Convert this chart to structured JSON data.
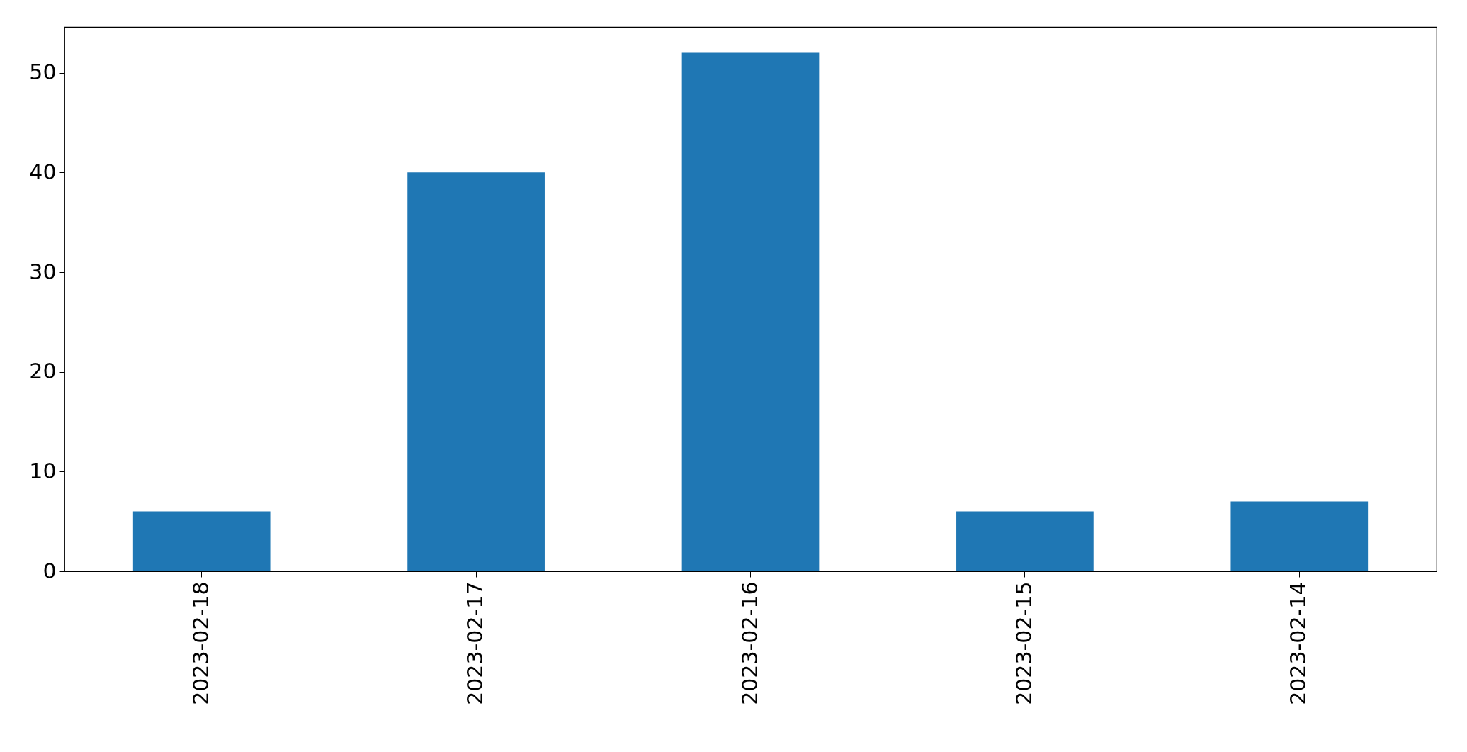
{
  "chart_data": {
    "type": "bar",
    "categories": [
      "2023-02-18",
      "2023-02-17",
      "2023-02-16",
      "2023-02-15",
      "2023-02-14"
    ],
    "values": [
      6,
      40,
      52,
      6,
      7
    ],
    "color": "#1f77b4",
    "ylim": [
      0,
      54.6
    ],
    "yticks": [
      0,
      10,
      20,
      30,
      40,
      50
    ],
    "grid": false
  }
}
